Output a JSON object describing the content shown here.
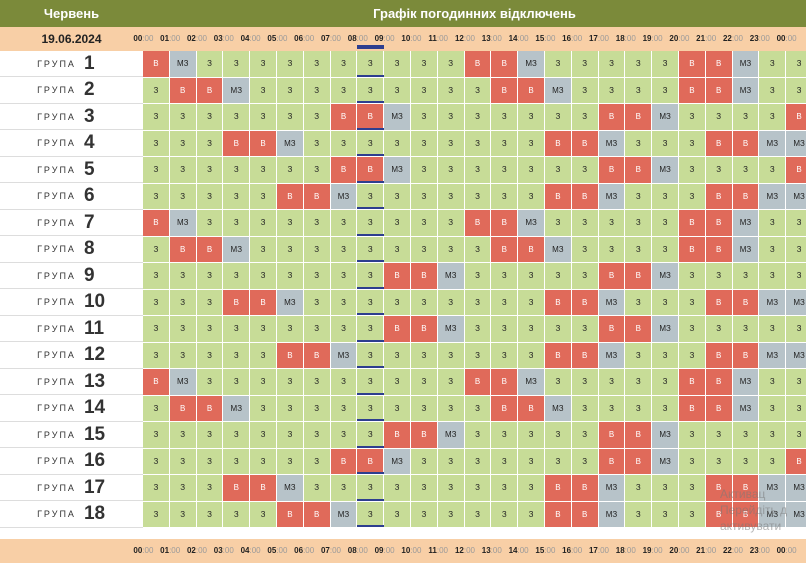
{
  "header": {
    "month": "Червень",
    "title": "Графік погодинних відключень"
  },
  "date": "19.06.2024",
  "hours": [
    "00",
    "01",
    "02",
    "03",
    "04",
    "05",
    "06",
    "07",
    "08",
    "09",
    "10",
    "11",
    "12",
    "13",
    "14",
    "15",
    "16",
    "17",
    "18",
    "19",
    "20",
    "21",
    "22",
    "23",
    "00"
  ],
  "minutes": ":00",
  "group_word": "ГРУПА",
  "legend": {
    "s": "З",
    "v": "В",
    "m": "МЗ"
  },
  "current_hour_index": 8,
  "colors": {
    "s": "#c7dc97",
    "v": "#e06a5a",
    "m": "#b7c3c9",
    "header": "#7b8a3a",
    "subheader": "#f8cfa6",
    "marker": "#2d3e8f"
  },
  "watermark": [
    "Активац",
    "Перейдіть д",
    "активувати"
  ],
  "groups": [
    {
      "number": "1",
      "cells": [
        "v",
        "m",
        "s",
        "s",
        "s",
        "s",
        "s",
        "s",
        "s",
        "s",
        "s",
        "s",
        "v",
        "v",
        "m",
        "s",
        "s",
        "s",
        "s",
        "s",
        "v",
        "v",
        "m",
        "s",
        "s"
      ]
    },
    {
      "number": "2",
      "cells": [
        "s",
        "v",
        "v",
        "m",
        "s",
        "s",
        "s",
        "s",
        "s",
        "s",
        "s",
        "s",
        "s",
        "v",
        "v",
        "m",
        "s",
        "s",
        "s",
        "s",
        "v",
        "v",
        "m",
        "s",
        "s"
      ]
    },
    {
      "number": "3",
      "cells": [
        "s",
        "s",
        "s",
        "s",
        "s",
        "s",
        "s",
        "v",
        "v",
        "m",
        "s",
        "s",
        "s",
        "s",
        "s",
        "s",
        "s",
        "v",
        "v",
        "m",
        "s",
        "s",
        "s",
        "s",
        "v"
      ]
    },
    {
      "number": "4",
      "cells": [
        "s",
        "s",
        "s",
        "v",
        "v",
        "m",
        "s",
        "s",
        "s",
        "s",
        "s",
        "s",
        "s",
        "s",
        "s",
        "v",
        "v",
        "m",
        "s",
        "s",
        "s",
        "v",
        "v",
        "m",
        "m"
      ]
    },
    {
      "number": "5",
      "cells": [
        "s",
        "s",
        "s",
        "s",
        "s",
        "s",
        "s",
        "v",
        "v",
        "m",
        "s",
        "s",
        "s",
        "s",
        "s",
        "s",
        "s",
        "v",
        "v",
        "m",
        "s",
        "s",
        "s",
        "s",
        "v"
      ]
    },
    {
      "number": "6",
      "cells": [
        "s",
        "s",
        "s",
        "s",
        "s",
        "v",
        "v",
        "m",
        "s",
        "s",
        "s",
        "s",
        "s",
        "s",
        "s",
        "v",
        "v",
        "m",
        "s",
        "s",
        "s",
        "v",
        "v",
        "m",
        "m"
      ]
    },
    {
      "number": "7",
      "cells": [
        "v",
        "m",
        "s",
        "s",
        "s",
        "s",
        "s",
        "s",
        "s",
        "s",
        "s",
        "s",
        "v",
        "v",
        "m",
        "s",
        "s",
        "s",
        "s",
        "s",
        "v",
        "v",
        "m",
        "s",
        "s"
      ]
    },
    {
      "number": "8",
      "cells": [
        "s",
        "v",
        "v",
        "m",
        "s",
        "s",
        "s",
        "s",
        "s",
        "s",
        "s",
        "s",
        "s",
        "v",
        "v",
        "m",
        "s",
        "s",
        "s",
        "s",
        "v",
        "v",
        "m",
        "s",
        "s"
      ]
    },
    {
      "number": "9",
      "cells": [
        "s",
        "s",
        "s",
        "s",
        "s",
        "s",
        "s",
        "s",
        "s",
        "v",
        "v",
        "m",
        "s",
        "s",
        "s",
        "s",
        "s",
        "v",
        "v",
        "m",
        "s",
        "s",
        "s",
        "s",
        "s"
      ]
    },
    {
      "number": "10",
      "cells": [
        "s",
        "s",
        "s",
        "v",
        "v",
        "m",
        "s",
        "s",
        "s",
        "s",
        "s",
        "s",
        "s",
        "s",
        "s",
        "v",
        "v",
        "m",
        "s",
        "s",
        "s",
        "v",
        "v",
        "m",
        "m"
      ]
    },
    {
      "number": "11",
      "cells": [
        "s",
        "s",
        "s",
        "s",
        "s",
        "s",
        "s",
        "s",
        "s",
        "v",
        "v",
        "m",
        "s",
        "s",
        "s",
        "s",
        "s",
        "v",
        "v",
        "m",
        "s",
        "s",
        "s",
        "s",
        "s"
      ]
    },
    {
      "number": "12",
      "cells": [
        "s",
        "s",
        "s",
        "s",
        "s",
        "v",
        "v",
        "m",
        "s",
        "s",
        "s",
        "s",
        "s",
        "s",
        "s",
        "v",
        "v",
        "m",
        "s",
        "s",
        "s",
        "v",
        "v",
        "m",
        "m"
      ]
    },
    {
      "number": "13",
      "cells": [
        "v",
        "m",
        "s",
        "s",
        "s",
        "s",
        "s",
        "s",
        "s",
        "s",
        "s",
        "s",
        "v",
        "v",
        "m",
        "s",
        "s",
        "s",
        "s",
        "s",
        "v",
        "v",
        "m",
        "s",
        "s"
      ]
    },
    {
      "number": "14",
      "cells": [
        "s",
        "v",
        "v",
        "m",
        "s",
        "s",
        "s",
        "s",
        "s",
        "s",
        "s",
        "s",
        "s",
        "v",
        "v",
        "m",
        "s",
        "s",
        "s",
        "s",
        "v",
        "v",
        "m",
        "s",
        "s"
      ]
    },
    {
      "number": "15",
      "cells": [
        "s",
        "s",
        "s",
        "s",
        "s",
        "s",
        "s",
        "s",
        "s",
        "v",
        "v",
        "m",
        "s",
        "s",
        "s",
        "s",
        "s",
        "v",
        "v",
        "m",
        "s",
        "s",
        "s",
        "s",
        "s"
      ]
    },
    {
      "number": "16",
      "cells": [
        "s",
        "s",
        "s",
        "s",
        "s",
        "s",
        "s",
        "v",
        "v",
        "m",
        "s",
        "s",
        "s",
        "s",
        "s",
        "s",
        "s",
        "v",
        "v",
        "m",
        "s",
        "s",
        "s",
        "s",
        "v"
      ]
    },
    {
      "number": "17",
      "cells": [
        "s",
        "s",
        "s",
        "v",
        "v",
        "m",
        "s",
        "s",
        "s",
        "s",
        "s",
        "s",
        "s",
        "s",
        "s",
        "v",
        "v",
        "m",
        "s",
        "s",
        "s",
        "v",
        "v",
        "m",
        "m"
      ]
    },
    {
      "number": "18",
      "cells": [
        "s",
        "s",
        "s",
        "s",
        "s",
        "v",
        "v",
        "m",
        "s",
        "s",
        "s",
        "s",
        "s",
        "s",
        "s",
        "v",
        "v",
        "m",
        "s",
        "s",
        "s",
        "v",
        "v",
        "m",
        "m"
      ]
    }
  ]
}
